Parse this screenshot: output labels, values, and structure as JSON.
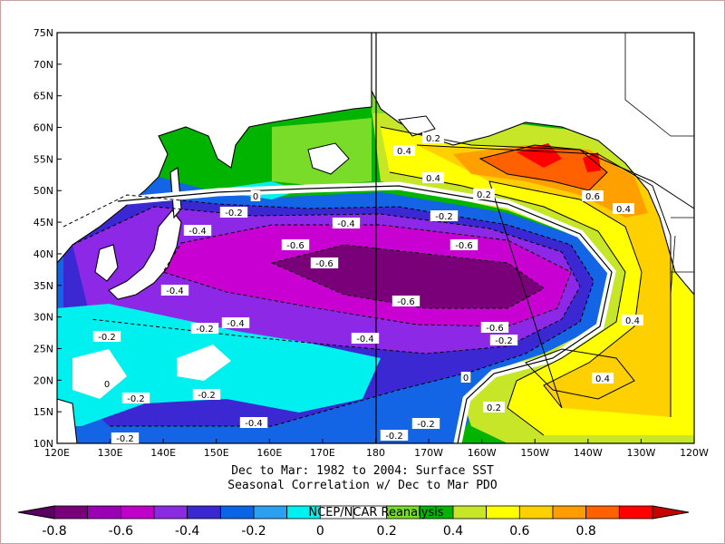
{
  "lat_labels": [
    "75N",
    "70N",
    "65N",
    "60N",
    "55N",
    "50N",
    "45N",
    "40N",
    "35N",
    "30N",
    "25N",
    "20N",
    "15N",
    "10N"
  ],
  "lon_labels": [
    "120E",
    "130E",
    "140E",
    "150E",
    "160E",
    "170E",
    "180",
    "170W",
    "160W",
    "150W",
    "140W",
    "130W",
    "120W"
  ],
  "caption": {
    "line1": "Dec to Mar: 1982 to 2004: Surface SST",
    "line2": "Seasonal Correlation w/ Dec to Mar PDO"
  },
  "credit": "NCEP/NCAR Reanalysis",
  "colorbar": {
    "labels": [
      "-0.8",
      "-0.6",
      "-0.4",
      "-0.2",
      "0",
      "0.2",
      "0.4",
      "0.6",
      "0.8"
    ],
    "colors": [
      "#7a007a",
      "#9c00b4",
      "#c000c8",
      "#8a2be2",
      "#3c28d2",
      "#0a64e6",
      "#2aa0f0",
      "#00f0f0",
      "#ffffff",
      "#ffffff",
      "#78dc28",
      "#00b400",
      "#c8e628",
      "#ffff00",
      "#ffd000",
      "#ff9c00",
      "#ff6000",
      "#ff0000"
    ]
  },
  "contour_labels": [
    "-0.2",
    "-0.4",
    "-0.6",
    "-0.6",
    "-0.6",
    "-0.6",
    "-0.4",
    "-0.2",
    "-0.4",
    "-0.2",
    "-0.2",
    "-0.4",
    "-0.2",
    "-0.2",
    "-0.2",
    "-0.6",
    "-0.2",
    "-0.4",
    "-0.4",
    "-0.2",
    "-0.2",
    "0",
    "0",
    "0",
    "0.2",
    "0.4",
    "0.4",
    "0.6",
    "0.4",
    "0.4",
    "0.4",
    "0.2",
    "0.2"
  ],
  "map_colors": {
    "neg_08": "#7a007a",
    "neg_06": "#b400c8",
    "neg_05": "#c800d2",
    "neg_04": "#8c28e6",
    "neg_03": "#3c28d2",
    "neg_02": "#1464e6",
    "neg_01": "#00f0f0",
    "zero": "#ffffff",
    "pos_01": "#78dc28",
    "pos_02": "#c8e628",
    "pos_03": "#ffff00",
    "pos_04": "#ffd000",
    "pos_05": "#ffa000",
    "pos_06": "#ff6000",
    "pos_07": "#ff0000"
  }
}
